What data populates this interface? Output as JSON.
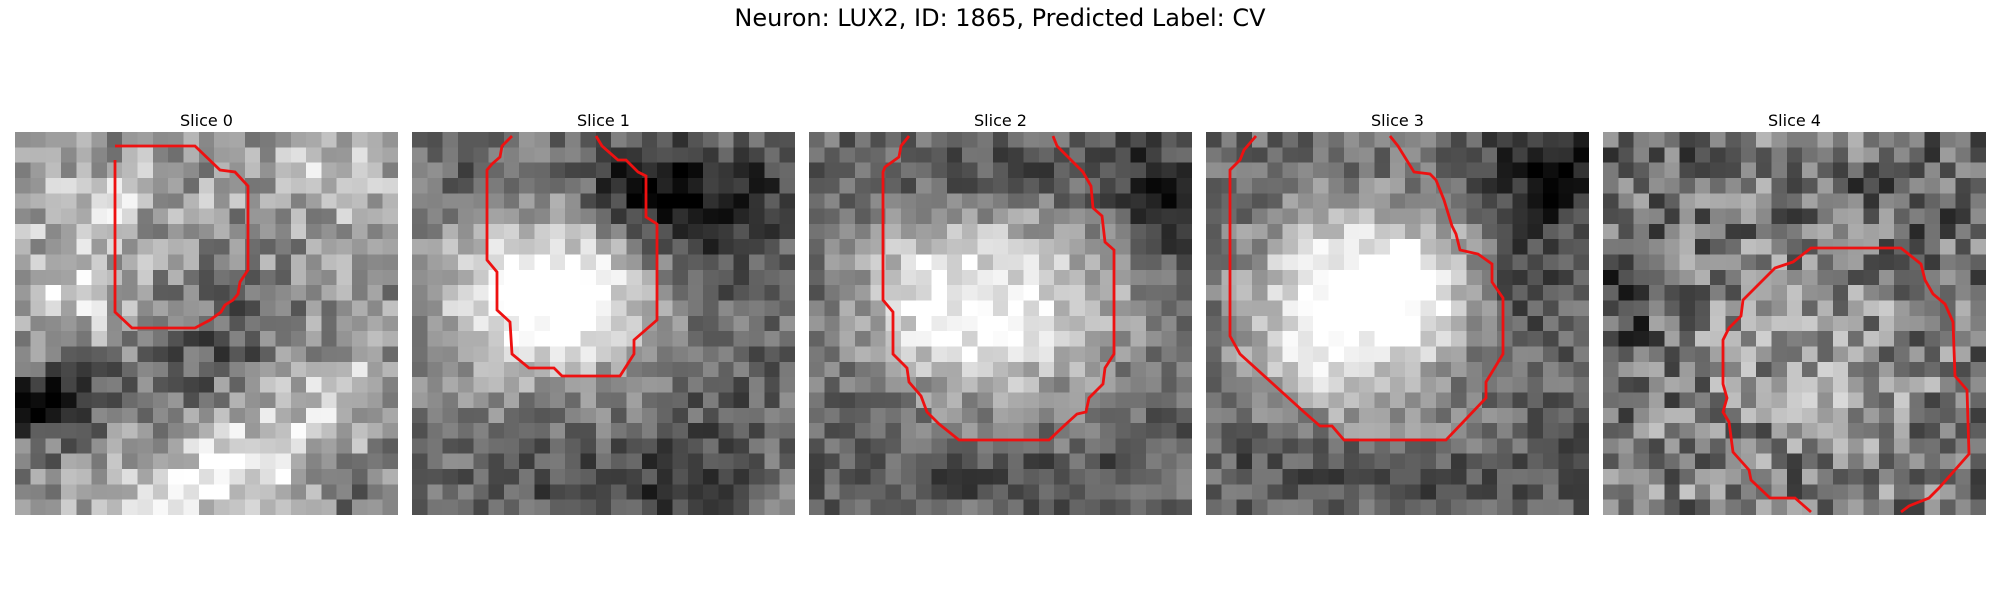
{
  "figure": {
    "suptitle": "Neuron: LUX2, ID: 1865, Predicted Label: CV",
    "contour_color": "#ee1111",
    "colormap": "gray",
    "panels": [
      {
        "title": "Slice 0"
      },
      {
        "title": "Slice 1"
      },
      {
        "title": "Slice 2"
      },
      {
        "title": "Slice 3"
      },
      {
        "title": "Slice 4"
      }
    ]
  }
}
